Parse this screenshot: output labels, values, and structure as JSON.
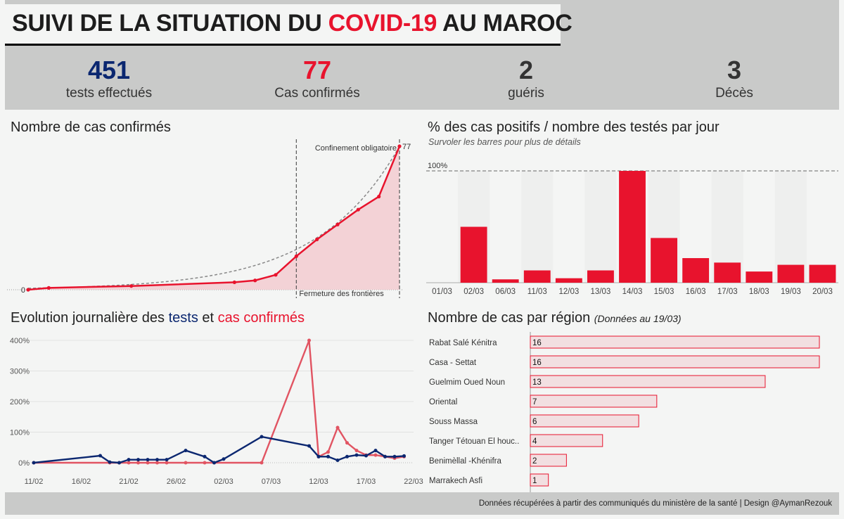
{
  "header": {
    "title_part1": "SUIVI DE LA SITUATION DU",
    "title_accent": "COVID-19",
    "title_part2": "AU MAROC"
  },
  "kpis": [
    {
      "value": "451",
      "label": "tests effectués",
      "color": "#0b2770"
    },
    {
      "value": "77",
      "label": "Cas confirmés",
      "color": "#e8132d"
    },
    {
      "value": "2",
      "label": "guéris",
      "color": "#333333"
    },
    {
      "value": "3",
      "label": "Décès",
      "color": "#333333"
    }
  ],
  "sections": {
    "cumulative_title": "Nombre de cas confirmés",
    "positivity_title": "% des cas positifs / nombre des testés par jour",
    "positivity_subtitle": "Survoler les barres pour plus de détails",
    "daily_title_prefix": "Evolution journalière des",
    "daily_title_tests": "tests",
    "daily_title_and": "et",
    "daily_title_cases": "cas confirmés",
    "region_title": "Nombre de cas par région",
    "region_subtitle": "(Données au 19/03)"
  },
  "footer": {
    "text": "Données récupérées à partir des communiqués du ministère de la santé | Design @AymanRezouk"
  },
  "chart_data": [
    {
      "id": "cumulative",
      "type": "line",
      "title": "Nombre de cas confirmés",
      "x": [
        0,
        1,
        5,
        10,
        11,
        12,
        13,
        14,
        15,
        16,
        17,
        18
      ],
      "values": [
        0,
        1,
        2,
        4,
        5,
        8,
        18,
        27,
        35,
        43,
        50,
        77
      ],
      "start_label": "0",
      "end_label": "77",
      "trend": "exponential",
      "color": "#e8132d",
      "annotations": [
        {
          "x": 13,
          "label": "Fermeture des frontières"
        },
        {
          "x": 18,
          "label": "Confinement obligatoire"
        }
      ],
      "grid": false
    },
    {
      "id": "positivity",
      "type": "bar",
      "title": "% des cas positifs / nombre des testés par jour",
      "categories": [
        "01/03",
        "02/03",
        "06/03",
        "11/03",
        "12/03",
        "13/03",
        "14/03",
        "15/03",
        "16/03",
        "17/03",
        "18/03",
        "19/03",
        "20/03"
      ],
      "values": [
        0,
        50,
        3,
        11,
        4,
        11,
        100,
        40,
        22,
        18,
        10,
        16,
        16
      ],
      "reference_line": {
        "value": 100,
        "label": "100%"
      },
      "ylim": [
        0,
        100
      ],
      "color": "#e8132d"
    },
    {
      "id": "daily",
      "type": "line",
      "title": "Evolution journalière des tests et cas confirmés",
      "x_ticks": [
        "11/02",
        "16/02",
        "21/02",
        "26/02",
        "02/03",
        "07/03",
        "12/03",
        "17/03",
        "22/03"
      ],
      "y_ticks": [
        "0%",
        "100%",
        "200%",
        "300%",
        "400%"
      ],
      "ylim": [
        0,
        400
      ],
      "series": [
        {
          "name": "tests",
          "color": "#0b2770",
          "x": [
            "11/02",
            "18/02",
            "19/02",
            "20/02",
            "21/02",
            "22/02",
            "23/02",
            "24/02",
            "25/02",
            "27/02",
            "29/02",
            "01/03",
            "02/03",
            "06/03",
            "11/03",
            "12/03",
            "13/03",
            "14/03",
            "15/03",
            "16/03",
            "17/03",
            "18/03",
            "19/03",
            "20/03",
            "21/03"
          ],
          "values": [
            0,
            23,
            2,
            0,
            10,
            10,
            10,
            10,
            10,
            40,
            20,
            0,
            12,
            85,
            55,
            20,
            20,
            8,
            20,
            25,
            23,
            40,
            20,
            20,
            22
          ]
        },
        {
          "name": "cas confirmés",
          "color": "#e15462",
          "x": [
            "11/02",
            "19/02",
            "20/02",
            "21/02",
            "22/02",
            "23/02",
            "24/02",
            "25/02",
            "27/02",
            "29/02",
            "01/03",
            "06/03",
            "11/03",
            "12/03",
            "13/03",
            "14/03",
            "15/03",
            "16/03",
            "17/03",
            "18/03",
            "19/03",
            "20/03",
            "21/03"
          ],
          "values": [
            0,
            0,
            0,
            0,
            0,
            0,
            0,
            0,
            0,
            0,
            0,
            0,
            400,
            20,
            35,
            115,
            65,
            40,
            25,
            25,
            20,
            15,
            20
          ]
        }
      ]
    },
    {
      "id": "regions",
      "type": "bar",
      "orientation": "horizontal",
      "title": "Nombre de cas par région",
      "subtitle": "(Données au 19/03)",
      "categories": [
        "Rabat Salé Kénitra",
        "Casa - Settat",
        "Guelmim Oued Noun",
        "Oriental",
        "Souss Massa",
        "Tanger Tétouan El houc..",
        "Benimèllal -Khénifra",
        "Marrakech Asfi"
      ],
      "values": [
        16,
        16,
        13,
        7,
        6,
        4,
        2,
        1
      ],
      "color": "#e8132d"
    }
  ]
}
